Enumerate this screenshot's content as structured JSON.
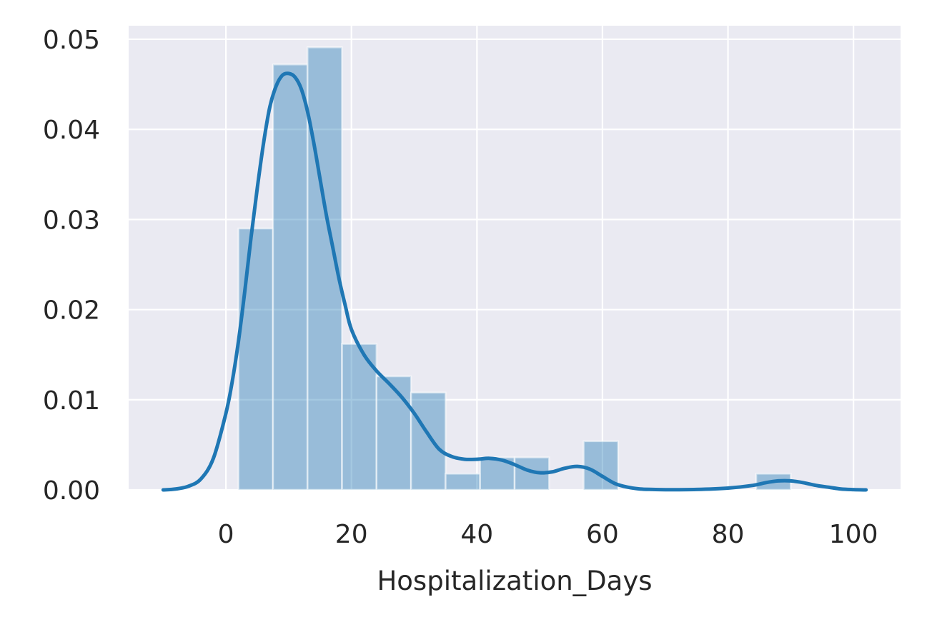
{
  "chart_data": {
    "type": "bar",
    "style": "histogram with kernel density curve",
    "title": "",
    "xlabel": "Hospitalization_Days",
    "ylabel": "",
    "xlim": [
      -15.5,
      107.5
    ],
    "ylim": [
      0,
      0.0515
    ],
    "x_ticks": [
      0,
      20,
      40,
      60,
      80,
      100
    ],
    "x_tick_labels": [
      "0",
      "20",
      "40",
      "60",
      "80",
      "100"
    ],
    "y_ticks": [
      0,
      0.01,
      0.02,
      0.03,
      0.04,
      0.05
    ],
    "y_tick_labels": [
      "0.00",
      "0.01",
      "0.02",
      "0.03",
      "0.04",
      "0.05"
    ],
    "grid": true,
    "legend": "none",
    "bins": [
      {
        "x0": 2.0,
        "x1": 7.5,
        "density": 0.029
      },
      {
        "x0": 7.5,
        "x1": 13.0,
        "density": 0.0472
      },
      {
        "x0": 13.0,
        "x1": 18.5,
        "density": 0.0491
      },
      {
        "x0": 18.5,
        "x1": 24.0,
        "density": 0.0162
      },
      {
        "x0": 24.0,
        "x1": 29.5,
        "density": 0.0126
      },
      {
        "x0": 29.5,
        "x1": 35.0,
        "density": 0.0108
      },
      {
        "x0": 35.0,
        "x1": 40.5,
        "density": 0.0018
      },
      {
        "x0": 40.5,
        "x1": 46.0,
        "density": 0.0036
      },
      {
        "x0": 46.0,
        "x1": 51.5,
        "density": 0.0036
      },
      {
        "x0": 51.5,
        "x1": 57.0,
        "density": 0.0
      },
      {
        "x0": 57.0,
        "x1": 62.5,
        "density": 0.0054
      },
      {
        "x0": 62.5,
        "x1": 68.0,
        "density": 0.0
      },
      {
        "x0": 68.0,
        "x1": 73.5,
        "density": 0.0
      },
      {
        "x0": 73.5,
        "x1": 79.0,
        "density": 0.0
      },
      {
        "x0": 79.0,
        "x1": 84.5,
        "density": 0.0
      },
      {
        "x0": 84.5,
        "x1": 90.0,
        "density": 0.0018
      }
    ],
    "kde": {
      "x": [
        -10,
        -8,
        -6,
        -4,
        -2,
        0,
        1,
        2,
        3,
        4,
        5,
        6,
        7,
        8,
        9,
        10,
        11,
        12,
        13,
        14,
        15,
        16,
        17,
        18,
        19,
        20,
        22,
        24,
        26,
        28,
        30,
        32,
        34,
        36,
        38,
        40,
        42,
        44,
        46,
        48,
        50,
        52,
        54,
        56,
        58,
        60,
        62,
        64,
        66,
        68,
        70,
        75,
        80,
        84,
        86,
        88,
        90,
        92,
        94,
        96,
        98,
        100,
        102
      ],
      "y": [
        0.0,
        0.0001,
        0.0004,
        0.0012,
        0.0035,
        0.0085,
        0.012,
        0.0165,
        0.022,
        0.028,
        0.0335,
        0.0385,
        0.0425,
        0.0448,
        0.046,
        0.0462,
        0.0458,
        0.0445,
        0.042,
        0.0385,
        0.0345,
        0.0305,
        0.027,
        0.0235,
        0.0205,
        0.0178,
        0.015,
        0.0132,
        0.0118,
        0.0103,
        0.0085,
        0.0064,
        0.0045,
        0.0037,
        0.0034,
        0.0034,
        0.0035,
        0.0033,
        0.0028,
        0.0022,
        0.0019,
        0.002,
        0.0024,
        0.0026,
        0.0023,
        0.0015,
        0.0007,
        0.0003,
        0.0001,
        5e-05,
        2e-05,
        5e-05,
        0.0002,
        0.0005,
        0.0008,
        0.001,
        0.001,
        0.0008,
        0.0005,
        0.0003,
        0.0001,
        3e-05,
        0.0
      ],
      "color": "#1f77b4"
    },
    "colors": {
      "bar_fill": "#1f77b4",
      "bar_opacity": 0.4,
      "plot_background": "#eaeaf2",
      "grid": "#ffffff",
      "text": "#262626"
    }
  }
}
